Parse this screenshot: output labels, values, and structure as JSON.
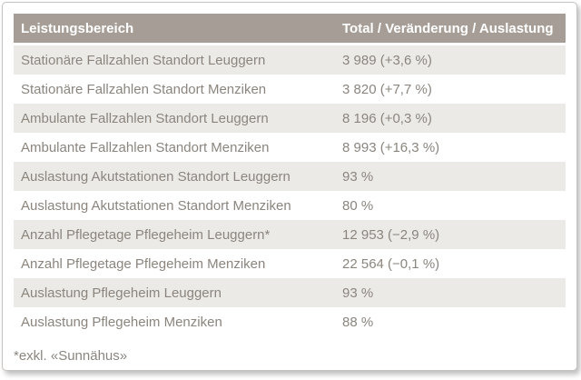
{
  "colors": {
    "header_bg": "#a69e96",
    "header_text": "#ffffff",
    "row_alt_bg": "#eceae7",
    "row_bg": "#ffffff",
    "body_text": "#8b857e",
    "card_border": "#c5c2bf"
  },
  "table": {
    "columns": [
      "Leistungsbereich",
      "Total / Veränderung / Auslastung"
    ],
    "rows": [
      {
        "label": "Stationäre Fallzahlen Standort Leuggern",
        "value": "3 989 (+3,6 %)"
      },
      {
        "label": "Stationäre Fallzahlen Standort Menziken",
        "value": "3 820 (+7,7 %)"
      },
      {
        "label": "Ambulante Fallzahlen Standort Leuggern",
        "value": "8 196 (+0,3 %)"
      },
      {
        "label": "Ambulante Fallzahlen Standort Menziken",
        "value": "8 993 (+16,3 %)"
      },
      {
        "label": "Auslastung Akutstationen Standort Leuggern",
        "value": "93 %"
      },
      {
        "label": "Auslastung Akutstationen Standort Menziken",
        "value": "80 %"
      },
      {
        "label": "Anzahl Pflegetage Pflegeheim Leuggern*",
        "value": "12 953 (−2,9 %)"
      },
      {
        "label": "Anzahl Pflegetage Pflegeheim Menziken",
        "value": "22 564 (−0,1 %)"
      },
      {
        "label": "Auslastung Pflegeheim Leuggern",
        "value": "93 %"
      },
      {
        "label": "Auslastung Pflegeheim Menziken",
        "value": "88 %"
      }
    ],
    "footnote": "*exkl. «Sunnähus»"
  },
  "chart_data": {
    "type": "table",
    "columns": [
      "Leistungsbereich",
      "Total / Veränderung / Auslastung"
    ],
    "rows": [
      {
        "bereich": "Stationäre Fallzahlen Standort Leuggern",
        "total": 3989,
        "veraenderung_pct": 3.6,
        "auslastung_pct": null
      },
      {
        "bereich": "Stationäre Fallzahlen Standort Menziken",
        "total": 3820,
        "veraenderung_pct": 7.7,
        "auslastung_pct": null
      },
      {
        "bereich": "Ambulante Fallzahlen Standort Leuggern",
        "total": 8196,
        "veraenderung_pct": 0.3,
        "auslastung_pct": null
      },
      {
        "bereich": "Ambulante Fallzahlen Standort Menziken",
        "total": 8993,
        "veraenderung_pct": 16.3,
        "auslastung_pct": null
      },
      {
        "bereich": "Auslastung Akutstationen Standort Leuggern",
        "total": null,
        "veraenderung_pct": null,
        "auslastung_pct": 93
      },
      {
        "bereich": "Auslastung Akutstationen Standort Menziken",
        "total": null,
        "veraenderung_pct": null,
        "auslastung_pct": 80
      },
      {
        "bereich": "Anzahl Pflegetage Pflegeheim Leuggern*",
        "total": 12953,
        "veraenderung_pct": -2.9,
        "auslastung_pct": null
      },
      {
        "bereich": "Anzahl Pflegetage Pflegeheim Menziken",
        "total": 22564,
        "veraenderung_pct": -0.1,
        "auslastung_pct": null
      },
      {
        "bereich": "Auslastung Pflegeheim Leuggern",
        "total": null,
        "veraenderung_pct": null,
        "auslastung_pct": 93
      },
      {
        "bereich": "Auslastung Pflegeheim Menziken",
        "total": null,
        "veraenderung_pct": null,
        "auslastung_pct": 88
      }
    ],
    "footnote": "*exkl. «Sunnähus»"
  }
}
